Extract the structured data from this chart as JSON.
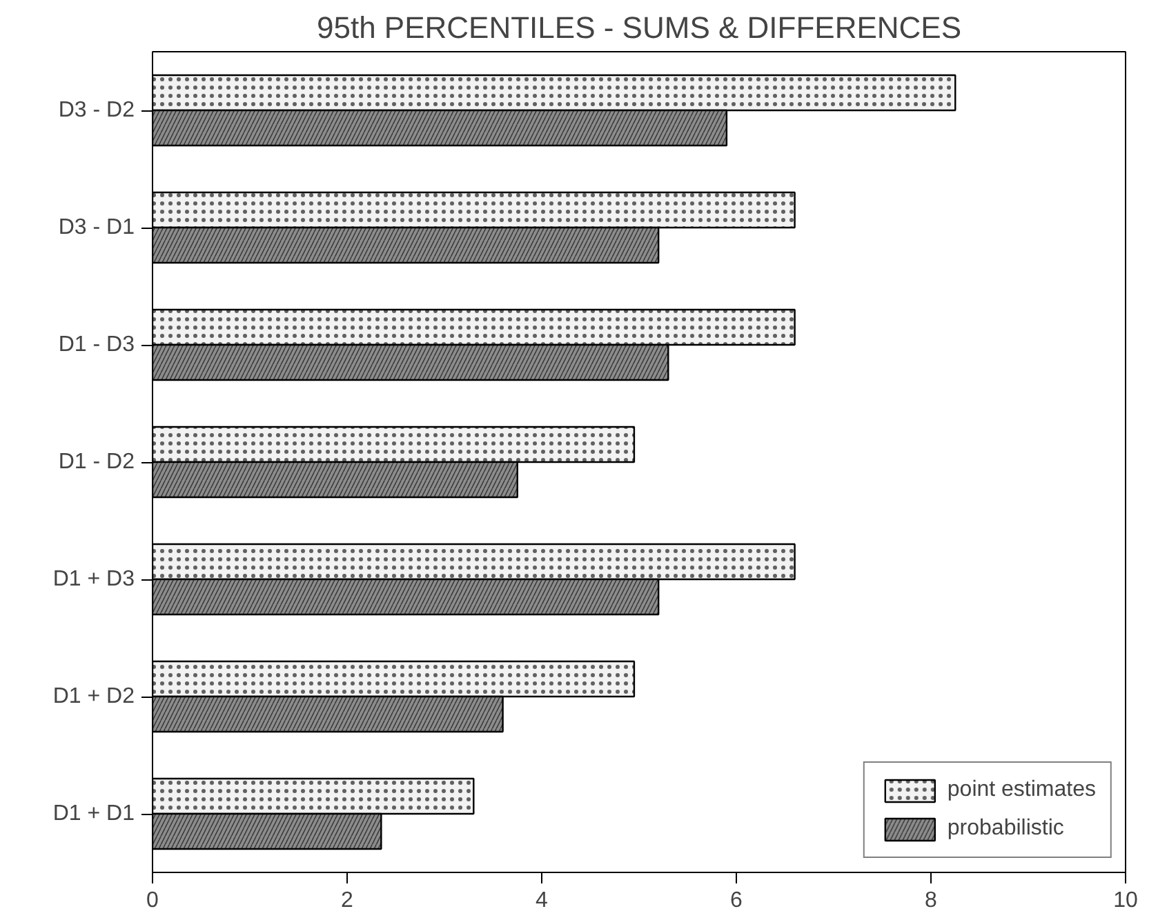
{
  "chart_data": {
    "type": "bar",
    "orientation": "horizontal",
    "title": "95th PERCENTILES - SUMS & DIFFERENCES",
    "categories": [
      "D3 - D2",
      "D3 - D1",
      "D1 - D3",
      "D1 - D2",
      "D1 + D3",
      "D1 + D2",
      "D1 + D1"
    ],
    "series": [
      {
        "name": "point estimates",
        "color": "#f2f2f2",
        "values": [
          8.25,
          6.6,
          6.6,
          4.95,
          6.6,
          4.95,
          3.3
        ]
      },
      {
        "name": "probabilistic",
        "color": "#8c8c8c",
        "values": [
          5.9,
          5.2,
          5.3,
          3.75,
          5.2,
          3.6,
          2.35
        ]
      }
    ],
    "xlim": [
      0,
      10
    ],
    "xticks": [
      0,
      2,
      4,
      6,
      8,
      10
    ],
    "grid": false,
    "legend": "bottom right"
  }
}
